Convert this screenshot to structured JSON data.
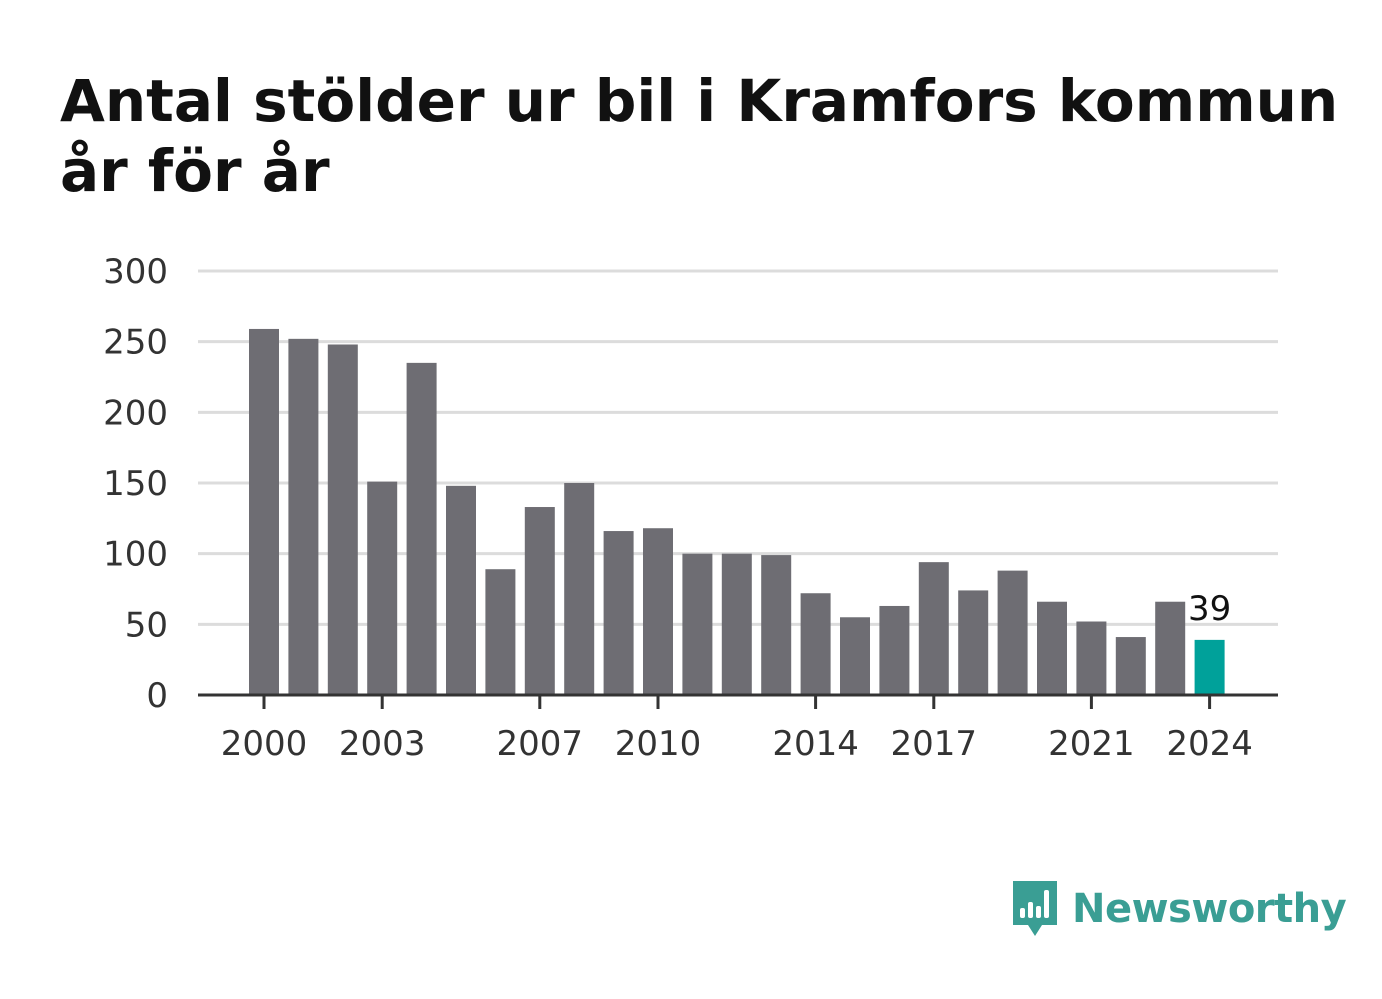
{
  "title": "Antal stölder ur bil i Kramfors kommun år för år",
  "brand": {
    "name": "Newsworthy",
    "icon": "newsworthy-logo-icon",
    "color": "#3a9e94"
  },
  "colors": {
    "bar": "#6e6d73",
    "highlight": "#00a19a",
    "grid": "#dcdcdc",
    "axis": "#333333"
  },
  "chart_data": {
    "type": "bar",
    "categories": [
      "2000",
      "2001",
      "2002",
      "2003",
      "2004",
      "2005",
      "2006",
      "2007",
      "2008",
      "2009",
      "2010",
      "2011",
      "2012",
      "2013",
      "2014",
      "2015",
      "2016",
      "2017",
      "2018",
      "2019",
      "2020",
      "2021",
      "2022",
      "2023",
      "2024"
    ],
    "values": [
      259,
      252,
      248,
      151,
      235,
      148,
      89,
      133,
      150,
      116,
      118,
      100,
      100,
      99,
      72,
      55,
      63,
      94,
      74,
      88,
      66,
      52,
      41,
      66,
      39
    ],
    "highlight_index": 24,
    "data_labels": [
      {
        "index": 24,
        "text": "39"
      }
    ],
    "x_tick_labels": [
      "2000",
      "2003",
      "2007",
      "2010",
      "2014",
      "2017",
      "2021",
      "2024"
    ],
    "y_ticks": [
      0,
      50,
      100,
      150,
      200,
      250,
      300
    ],
    "ylim": [
      0,
      300
    ],
    "grid": true,
    "legend": "none",
    "xlabel": "",
    "ylabel": ""
  }
}
